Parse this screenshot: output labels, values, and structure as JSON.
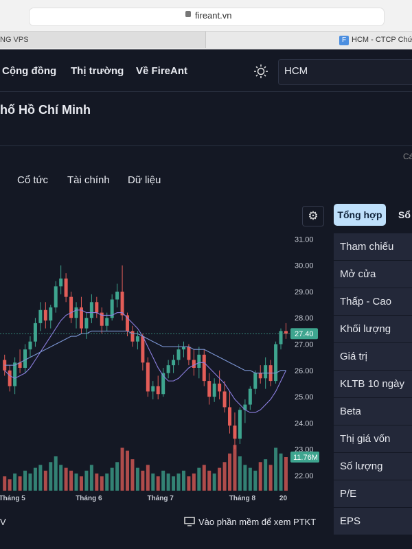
{
  "browser": {
    "url": "fireant.vn",
    "tabs": [
      "NG VPS",
      "HCM - CTCP Chứng"
    ],
    "tab_icon": "F"
  },
  "nav": {
    "items": [
      "Cộng đồng",
      "Thị trường",
      "Về FireAnt"
    ],
    "search": "HCM"
  },
  "company": {
    "name": "hố Hồ Chí Minh",
    "corner": "Cá"
  },
  "tabs": [
    "Cổ tức",
    "Tài chính",
    "Dữ liệu"
  ],
  "panel": {
    "tabs": [
      "Tổng hợp",
      "Sổ l"
    ],
    "rows": [
      "Tham chiếu",
      "Mở cửa",
      "Thấp - Cao",
      "Khối lượng",
      "Giá trị",
      "KLTB 10 ngày",
      "Beta",
      "Thị giá vốn",
      "Số lượng CPLH",
      "P/E",
      "EPS"
    ]
  },
  "footer": {
    "left": "V",
    "link": "Vào phần mềm để xem PTKT"
  },
  "chart_data": {
    "type": "candlestick",
    "up_color": "#3ea58f",
    "down_color": "#e35d58",
    "categories": [
      null,
      null,
      "Tháng 5",
      null,
      null,
      null,
      null,
      null,
      null,
      null,
      null,
      null,
      null,
      null,
      null,
      null,
      null,
      "Tháng 6",
      null,
      null,
      null,
      null,
      null,
      null,
      null,
      null,
      null,
      null,
      null,
      null,
      null,
      "Tháng 7",
      null,
      null,
      null,
      null,
      null,
      null,
      null,
      null,
      null,
      null,
      null,
      null,
      null,
      null,
      null,
      "Tháng 8",
      null,
      null,
      null,
      null,
      null,
      null,
      null,
      "20"
    ],
    "candles": [
      [
        26.4,
        26.6,
        25.8,
        26.0
      ],
      [
        26.0,
        26.2,
        25.2,
        25.4
      ],
      [
        25.4,
        26.5,
        25.1,
        26.3
      ],
      [
        26.3,
        26.8,
        25.9,
        26.1
      ],
      [
        26.1,
        27.0,
        25.9,
        26.8
      ],
      [
        26.8,
        27.3,
        26.5,
        27.1
      ],
      [
        27.1,
        28.0,
        26.9,
        27.8
      ],
      [
        27.8,
        28.6,
        27.5,
        28.3
      ],
      [
        28.3,
        28.6,
        27.6,
        27.9
      ],
      [
        27.9,
        28.5,
        27.6,
        28.4
      ],
      [
        28.4,
        29.4,
        28.2,
        29.2
      ],
      [
        29.2,
        30.0,
        28.9,
        29.5
      ],
      [
        29.5,
        29.7,
        28.6,
        28.8
      ],
      [
        28.8,
        29.0,
        27.8,
        28.0
      ],
      [
        28.0,
        28.6,
        27.6,
        28.4
      ],
      [
        28.4,
        28.8,
        27.4,
        27.6
      ],
      [
        27.6,
        28.2,
        27.2,
        28.0
      ],
      [
        28.0,
        28.9,
        27.8,
        28.6
      ],
      [
        28.6,
        28.8,
        28.0,
        28.2
      ],
      [
        28.2,
        28.4,
        27.4,
        27.7
      ],
      [
        27.7,
        28.2,
        27.5,
        28.0
      ],
      [
        28.0,
        28.9,
        27.9,
        28.7
      ],
      [
        28.7,
        29.3,
        28.4,
        29.0
      ],
      [
        29.0,
        30.0,
        27.9,
        28.1
      ],
      [
        28.1,
        28.2,
        27.3,
        27.5
      ],
      [
        27.5,
        27.7,
        26.9,
        27.1
      ],
      [
        27.1,
        27.5,
        26.8,
        27.3
      ],
      [
        27.3,
        27.4,
        26.0,
        26.3
      ],
      [
        26.3,
        26.5,
        25.0,
        25.2
      ],
      [
        25.2,
        25.6,
        24.9,
        25.4
      ],
      [
        25.4,
        25.8,
        24.9,
        25.1
      ],
      [
        25.1,
        26.1,
        25.0,
        25.9
      ],
      [
        25.9,
        26.4,
        25.7,
        26.2
      ],
      [
        26.2,
        26.6,
        25.9,
        26.4
      ],
      [
        26.4,
        27.0,
        26.2,
        26.8
      ],
      [
        26.8,
        27.1,
        26.5,
        26.9
      ],
      [
        26.9,
        27.0,
        26.2,
        26.4
      ],
      [
        26.4,
        26.8,
        25.8,
        26.1
      ],
      [
        26.1,
        26.9,
        25.7,
        26.6
      ],
      [
        26.6,
        26.8,
        25.4,
        25.6
      ],
      [
        25.6,
        25.9,
        24.7,
        25.0
      ],
      [
        25.0,
        25.7,
        24.8,
        25.5
      ],
      [
        25.5,
        26.0,
        24.9,
        25.2
      ],
      [
        25.2,
        25.6,
        24.4,
        24.6
      ],
      [
        24.6,
        25.2,
        23.6,
        23.9
      ],
      [
        23.9,
        24.4,
        23.0,
        23.4
      ],
      [
        23.4,
        24.6,
        23.2,
        24.5
      ],
      [
        24.5,
        24.9,
        24.0,
        24.7
      ],
      [
        24.7,
        25.4,
        24.5,
        25.3
      ],
      [
        25.3,
        26.0,
        25.1,
        25.9
      ],
      [
        25.9,
        26.2,
        25.5,
        25.7
      ],
      [
        25.7,
        26.5,
        25.3,
        26.2
      ],
      [
        26.2,
        26.4,
        25.4,
        25.6
      ],
      [
        25.6,
        27.1,
        25.5,
        27.0
      ],
      [
        27.0,
        27.6,
        26.8,
        27.5
      ],
      [
        27.5,
        27.8,
        27.2,
        27.4
      ]
    ],
    "volumes": [
      5,
      4,
      6,
      5,
      7,
      6,
      8,
      9,
      7,
      10,
      12,
      9,
      8,
      7,
      6,
      5,
      7,
      9,
      6,
      5,
      6,
      8,
      10,
      15,
      14,
      11,
      8,
      7,
      9,
      6,
      5,
      7,
      6,
      5,
      6,
      7,
      5,
      6,
      8,
      9,
      7,
      6,
      8,
      10,
      13,
      16,
      12,
      9,
      8,
      7,
      10,
      11,
      9,
      15,
      13,
      11.76
    ],
    "ma_lines": [
      {
        "color": "#8c7fe0",
        "values": [
          26.0,
          25.8,
          25.7,
          25.8,
          25.9,
          26.1,
          26.4,
          26.7,
          27.0,
          27.3,
          27.6,
          27.9,
          28.1,
          28.2,
          28.3,
          28.3,
          28.2,
          28.2,
          28.2,
          28.1,
          28.1,
          28.1,
          28.2,
          28.2,
          28.0,
          27.8,
          27.6,
          27.3,
          26.9,
          26.5,
          26.1,
          25.8,
          25.6,
          25.6,
          25.7,
          25.9,
          26.1,
          26.2,
          26.3,
          26.3,
          26.1,
          25.9,
          25.7,
          25.5,
          25.2,
          24.9,
          24.7,
          24.5,
          24.4,
          24.4,
          24.5,
          24.7,
          24.9,
          25.2,
          25.6,
          26.0
        ]
      },
      {
        "color": "#7d97d6",
        "values": [
          26.2,
          26.2,
          26.2,
          26.3,
          26.4,
          26.5,
          26.6,
          26.7,
          26.8,
          26.9,
          27.0,
          27.1,
          27.2,
          27.3,
          27.3,
          27.4,
          27.4,
          27.5,
          27.5,
          27.5,
          27.5,
          27.5,
          27.5,
          27.5,
          27.5,
          27.4,
          27.4,
          27.3,
          27.2,
          27.1,
          27.0,
          26.9,
          26.9,
          26.9,
          26.9,
          26.9,
          26.9,
          26.8,
          26.8,
          26.8,
          26.7,
          26.6,
          26.5,
          26.4,
          26.3,
          26.2,
          26.1,
          26.0,
          26.0,
          25.9,
          25.9,
          25.9,
          25.9,
          25.9,
          26.0,
          26.0
        ]
      }
    ],
    "ylim": [
      21.45,
      31.35
    ],
    "vlim": [
      0,
      18
    ],
    "yticks": [
      {
        "value": 31,
        "label": "31.00"
      },
      {
        "value": 30,
        "label": "30.00"
      },
      {
        "value": 29,
        "label": "29.00"
      },
      {
        "value": 28,
        "label": "28.00"
      },
      {
        "value": 27,
        "label": "27.00"
      },
      {
        "value": 26,
        "label": "26.00"
      },
      {
        "value": 25,
        "label": "25.00"
      },
      {
        "value": 24,
        "label": "24.00"
      },
      {
        "value": 23,
        "label": "23.00"
      },
      {
        "value": 22,
        "label": "22.00"
      }
    ],
    "price_tag": {
      "value": 27.4,
      "label": "27.40"
    },
    "volume_tag": {
      "value": 11.76,
      "label": "11.76M"
    }
  }
}
